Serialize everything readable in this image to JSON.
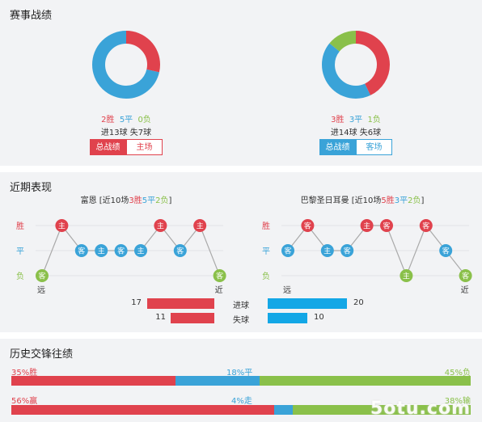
{
  "colors": {
    "win": "#e0424d",
    "draw": "#3aa3d8",
    "loss": "#8ac04a",
    "bar_blue": "#13a7e6",
    "track": "#dcdde0"
  },
  "record": {
    "title": "赛事战绩",
    "left": {
      "wins_text": "2胜",
      "draws_text": "5平",
      "losses_text": "0负",
      "goals_text": "进13球  失7球",
      "donut": {
        "win": 2,
        "draw": 5,
        "loss": 0
      },
      "tab_total": "总战绩",
      "tab_venue": "主场"
    },
    "right": {
      "wins_text": "3胜",
      "draws_text": "3平",
      "losses_text": "1负",
      "goals_text": "进14球  失6球",
      "donut": {
        "win": 3,
        "draw": 3,
        "loss": 1
      },
      "tab_total": "总战绩",
      "tab_venue": "客场"
    }
  },
  "recent": {
    "title": "近期表现",
    "row_labels": [
      "胜",
      "平",
      "负"
    ],
    "far_label": "远",
    "near_label": "近",
    "left": {
      "team": "富恩",
      "prefix": " [近10场",
      "wins": "3胜",
      "draws": "5平",
      "losses": "2负",
      "suffix": "]",
      "results": [
        "L",
        "W",
        "D",
        "D",
        "D",
        "D",
        "W",
        "D",
        "W",
        "L"
      ],
      "venue": [
        "客",
        "主",
        "客",
        "主",
        "客",
        "主",
        "主",
        "客",
        "主",
        "客"
      ]
    },
    "right": {
      "team": "巴黎圣日耳曼",
      "prefix": " [近10场",
      "wins": "5胜",
      "draws": "3平",
      "losses": "2负",
      "suffix": "]",
      "results": [
        "D",
        "W",
        "D",
        "D",
        "W",
        "W",
        "L",
        "W",
        "D",
        "L"
      ],
      "venue": [
        "客",
        "客",
        "主",
        "客",
        "主",
        "客",
        "主",
        "客",
        "客",
        "客"
      ]
    },
    "goals": {
      "for_label": "进球",
      "against_label": "失球",
      "left_for": 17,
      "left_against": 11,
      "right_for": 20,
      "right_against": 10,
      "max": 20
    }
  },
  "history": {
    "title": "历史交锋往绩",
    "row1": {
      "left_label": "35%胜",
      "mid_label": "18%平",
      "right_label": "45%负",
      "win": 35,
      "draw": 18,
      "loss": 45
    },
    "row2": {
      "left_label": "56%赢",
      "mid_label": "4%走",
      "right_label": "38%输",
      "win": 56,
      "draw": 4,
      "loss": 38
    }
  },
  "watermark": "5otu.com"
}
